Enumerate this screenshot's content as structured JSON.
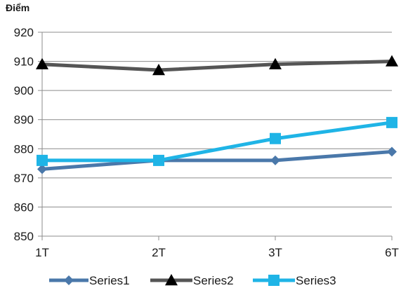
{
  "chart_data": {
    "type": "line",
    "title": "",
    "ylabel": "Điểm",
    "xlabel": "",
    "categories": [
      "1T",
      "2T",
      "3T",
      "6T"
    ],
    "ylim": [
      850,
      920
    ],
    "yticks": [
      850,
      860,
      870,
      880,
      890,
      900,
      910,
      920
    ],
    "grid": true,
    "legend": "bottom",
    "series": [
      {
        "name": "Series1",
        "values": [
          873,
          876,
          876,
          879
        ],
        "color": "#4a78aa",
        "marker": "diamond"
      },
      {
        "name": "Series2",
        "values": [
          909,
          907,
          909,
          910
        ],
        "color": "#555555",
        "marker": "triangle"
      },
      {
        "name": "Series3",
        "values": [
          876,
          876,
          883.5,
          889
        ],
        "color": "#1fb4e6",
        "marker": "square"
      }
    ]
  }
}
